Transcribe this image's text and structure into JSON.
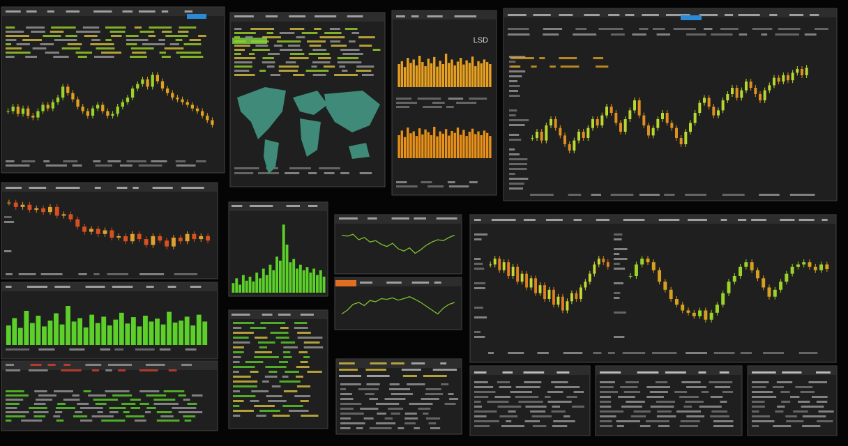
{
  "header": {
    "label": "LSD"
  },
  "charts": [
    {
      "type": "candles",
      "colors": [
        "#9bd32a",
        "#e0a020"
      ],
      "ylim": [
        0,
        100
      ],
      "values": [
        45,
        50,
        42,
        48,
        40,
        38,
        45,
        52,
        48,
        55,
        60,
        72,
        65,
        58,
        50,
        45,
        40,
        48,
        52,
        45,
        40,
        42,
        50,
        55,
        60,
        70,
        75,
        80,
        72,
        85,
        78,
        70,
        65,
        60,
        58,
        55,
        52,
        48,
        45,
        40,
        35,
        30
      ]
    },
    {
      "type": "bars",
      "colors": [
        "#e8a020"
      ],
      "ylim": [
        0,
        100
      ],
      "values": [
        55,
        62,
        48,
        70,
        58,
        66,
        52,
        75,
        60,
        50,
        68,
        57,
        72,
        49,
        63,
        55,
        80,
        58,
        66,
        52,
        61,
        70,
        54,
        64,
        58,
        73,
        50,
        62,
        57,
        66,
        60,
        55
      ]
    },
    {
      "type": "bars",
      "colors": [
        "#e89018"
      ],
      "ylim": [
        0,
        100
      ],
      "values": [
        60,
        72,
        55,
        80,
        65,
        70,
        58,
        78,
        62,
        75,
        68,
        60,
        82,
        57,
        70,
        64,
        76,
        59,
        71,
        66,
        80,
        61,
        74,
        58,
        69,
        77,
        63,
        70,
        60,
        72,
        66,
        58
      ]
    },
    {
      "type": "candles",
      "colors": [
        "#b8d830",
        "#e09020"
      ],
      "ylim": [
        0,
        100
      ],
      "values": [
        40,
        45,
        38,
        50,
        55,
        48,
        42,
        35,
        30,
        38,
        45,
        40,
        48,
        55,
        50,
        58,
        65,
        60,
        52,
        45,
        55,
        62,
        70,
        58,
        50,
        42,
        48,
        55,
        60,
        52,
        48,
        40,
        35,
        45,
        52,
        60,
        68,
        72,
        65,
        58,
        62,
        70,
        75,
        80,
        72,
        78,
        85,
        80,
        75,
        70,
        78,
        82,
        88,
        85,
        90,
        86,
        92,
        95,
        90,
        96
      ]
    },
    {
      "type": "candles",
      "colors": [
        "#e0a030",
        "#d85020"
      ],
      "ylim": [
        0,
        100
      ],
      "values": [
        88,
        82,
        85,
        78,
        80,
        75,
        82,
        70,
        72,
        65,
        55,
        48,
        52,
        45,
        50,
        40,
        42,
        35,
        45,
        38,
        30,
        42,
        36,
        28,
        40,
        35,
        45,
        38,
        42,
        36
      ]
    },
    {
      "type": "bars",
      "colors": [
        "#5ccf2a"
      ],
      "ylim": [
        0,
        100
      ],
      "values": [
        40,
        55,
        35,
        70,
        45,
        60,
        38,
        50,
        65,
        42,
        80,
        48,
        55,
        36,
        62,
        45,
        58,
        40,
        52,
        66,
        44,
        57,
        38,
        60,
        48,
        54,
        42,
        68,
        46,
        50,
        58,
        40,
        62,
        48
      ]
    },
    {
      "type": "bars",
      "colors": [
        "#5ccf2a"
      ],
      "ylim": [
        0,
        100
      ],
      "values": [
        12,
        18,
        10,
        22,
        15,
        20,
        14,
        25,
        18,
        30,
        22,
        35,
        28,
        45,
        40,
        85,
        60,
        38,
        42,
        30,
        35,
        28,
        32,
        25,
        30,
        22,
        28,
        20
      ]
    },
    {
      "type": "line",
      "colors": [
        "#7fc030"
      ],
      "ylim": [
        0,
        100
      ],
      "values": [
        70,
        68,
        72,
        60,
        65,
        55,
        58,
        50,
        45,
        52,
        40,
        35,
        42,
        30,
        38,
        48,
        55,
        60,
        58,
        65,
        70
      ]
    },
    {
      "type": "line",
      "colors": [
        "#7fc030"
      ],
      "ylim": [
        0,
        100
      ],
      "values": [
        30,
        40,
        55,
        60,
        52,
        65,
        62,
        70,
        68,
        72,
        66,
        70,
        75,
        68,
        60,
        50,
        40,
        30,
        45,
        55,
        60
      ]
    },
    {
      "type": "candles",
      "colors": [
        "#c8d830",
        "#e08020"
      ],
      "ylim": [
        0,
        100
      ],
      "values": [
        70,
        75,
        65,
        72,
        60,
        68,
        55,
        62,
        50,
        58,
        45,
        52,
        40,
        48,
        35,
        42,
        30,
        38,
        45,
        40,
        50,
        55,
        62,
        70,
        75,
        72,
        68
      ]
    },
    {
      "type": "candles",
      "colors": [
        "#9bd32a",
        "#d8a020"
      ],
      "ylim": [
        0,
        100
      ],
      "values": [
        60,
        70,
        75,
        72,
        65,
        55,
        48,
        40,
        35,
        30,
        28,
        25,
        30,
        22,
        28,
        35,
        45,
        55,
        60,
        68,
        72,
        65,
        58,
        50,
        42,
        48,
        55,
        62,
        68,
        70,
        72,
        68,
        65,
        70,
        66
      ]
    }
  ]
}
